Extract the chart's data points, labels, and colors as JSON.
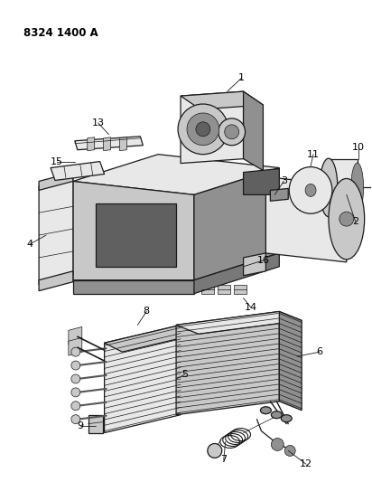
{
  "title": "8324 1400 A",
  "bg_color": "#ffffff",
  "lc": "#1a1a1a",
  "label_color": "#000000",
  "title_fontsize": 8.5,
  "label_fontsize": 7.5,
  "figsize": [
    4.12,
    5.33
  ],
  "dpi": 100,
  "gray_light": "#e8e8e8",
  "gray_mid": "#c8c8c8",
  "gray_dark": "#909090",
  "gray_darker": "#606060",
  "gray_black": "#383838"
}
